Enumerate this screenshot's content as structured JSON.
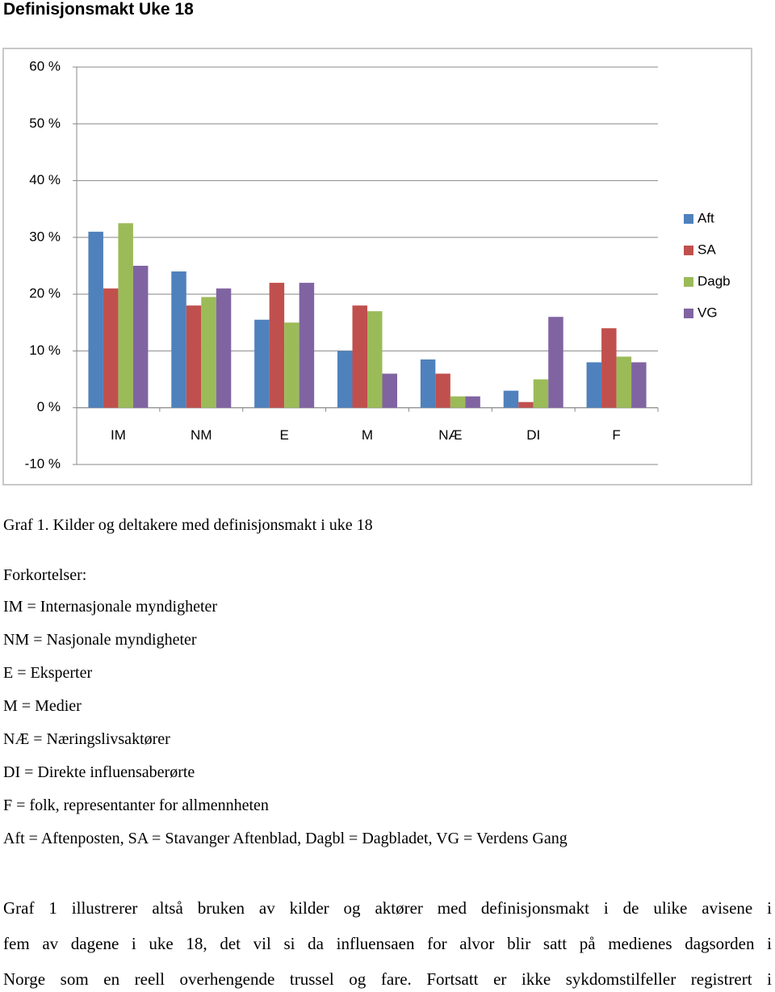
{
  "title": "Definisjonsmakt Uke 18",
  "chart_data": {
    "type": "bar",
    "categories": [
      "IM",
      "NM",
      "E",
      "M",
      "NÆ",
      "DI",
      "F"
    ],
    "series": [
      {
        "name": "Aft",
        "color": "#4f81bd",
        "values": [
          31,
          24,
          15.5,
          10,
          8.5,
          3,
          8
        ]
      },
      {
        "name": "SA",
        "color": "#c0504d",
        "values": [
          21,
          18,
          22,
          18,
          6,
          1,
          14
        ]
      },
      {
        "name": "Dagb",
        "color": "#9bbb59",
        "values": [
          32.5,
          19.5,
          15,
          17,
          2,
          5,
          9
        ]
      },
      {
        "name": "VG",
        "color": "#8064a2",
        "values": [
          25,
          21,
          22,
          6,
          2,
          16,
          8
        ]
      }
    ],
    "ylim": [
      -10,
      60
    ],
    "yticks": [
      {
        "value": -10,
        "label": "-10 %"
      },
      {
        "value": 0,
        "label": "0 %"
      },
      {
        "value": 10,
        "label": "10 %"
      },
      {
        "value": 20,
        "label": "20 %"
      },
      {
        "value": 30,
        "label": "30 %"
      },
      {
        "value": 40,
        "label": "40 %"
      },
      {
        "value": 50,
        "label": "50 %"
      },
      {
        "value": 60,
        "label": "60 %"
      }
    ],
    "grid": true,
    "legend": "right"
  },
  "caption": "Graf 1. Kilder og deltakere med definisjonsmakt i uke 18",
  "abbreviations_heading": "Forkortelser:",
  "abbreviations": [
    "IM = Internasjonale myndigheter",
    "NM = Nasjonale myndigheter",
    "E = Eksperter",
    "M = Medier",
    "NÆ = Næringslivsaktører",
    "DI = Direkte influensaberørte",
    "F = folk, representanter for allmennheten",
    "Aft = Aftenposten, SA = Stavanger Aftenblad, Dagbl = Dagbladet, VG = Verdens Gang"
  ],
  "paragraph_lines": [
    "Graf 1 illustrerer altså bruken av kilder og aktører med definisjonsmakt i de ulike avisene i",
    "fem av dagene i uke 18, det vil si da influensaen for alvor blir satt på medienes dagsorden i",
    "Norge som en reell overhengende trussel og fare. Fortsatt er ikke sykdomstilfeller registrert i"
  ]
}
